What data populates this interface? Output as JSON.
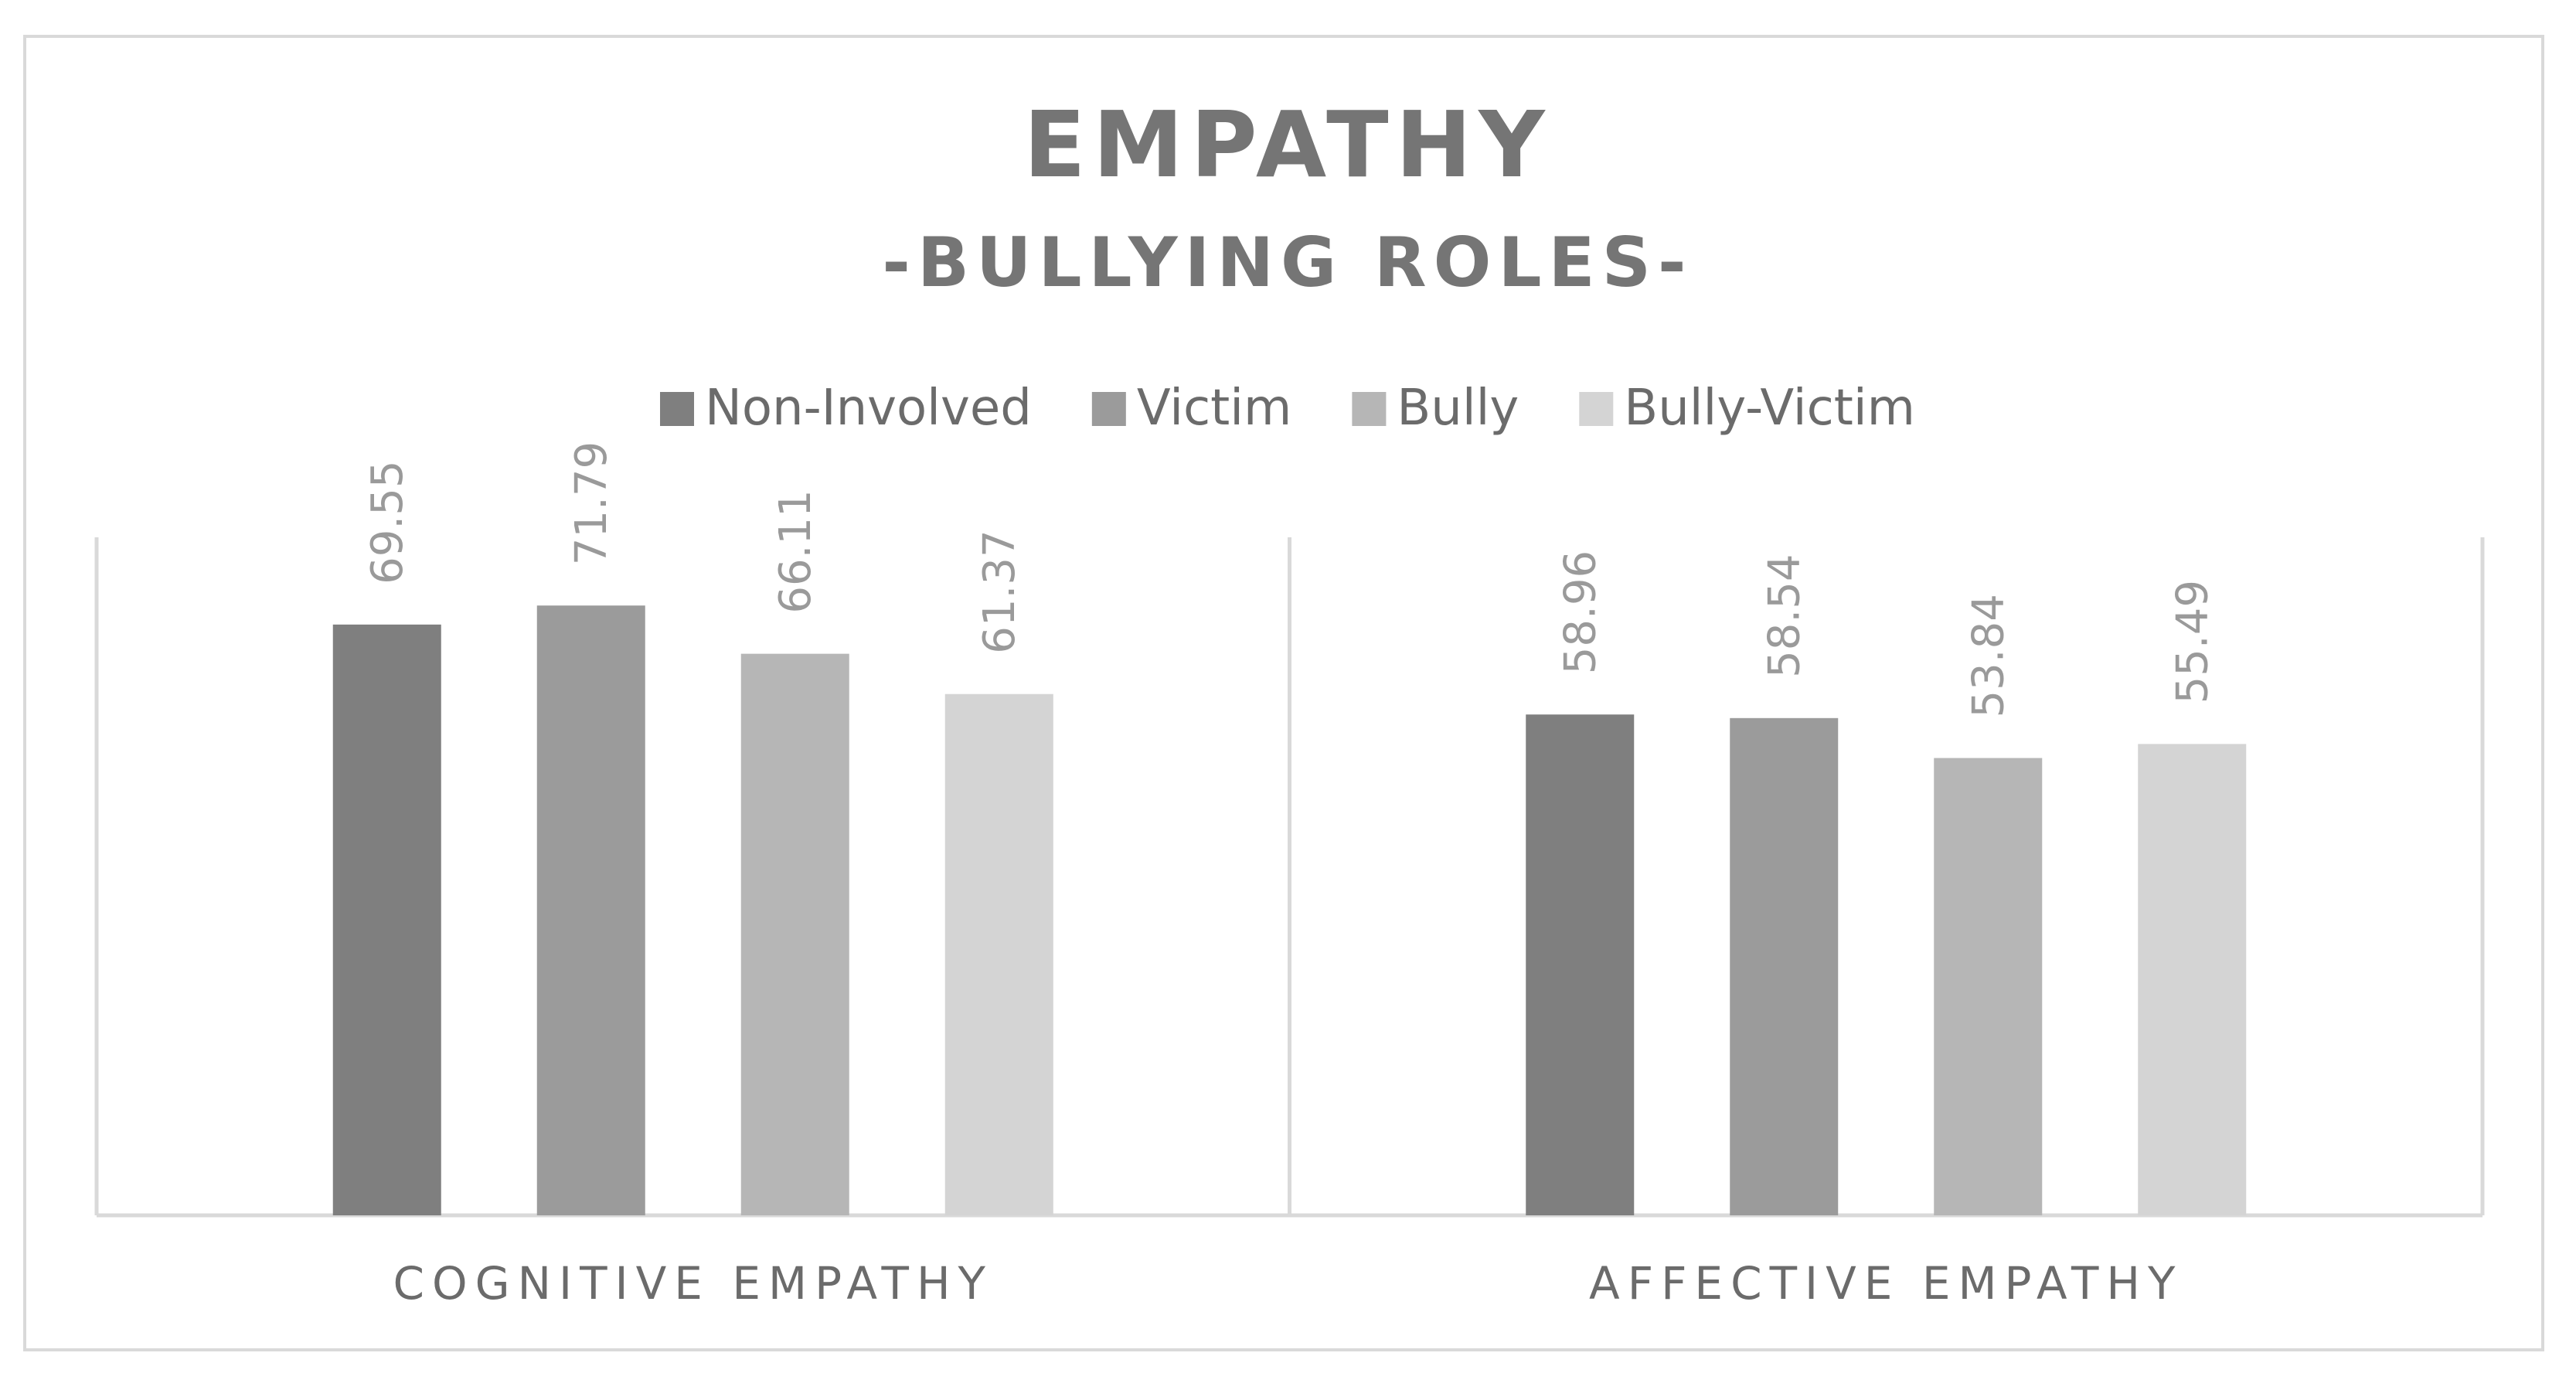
{
  "chart_data": {
    "type": "bar",
    "title": "EMPATHY",
    "subtitle": "-BULLYING ROLES-",
    "xlabel": "",
    "ylabel": "",
    "categories": [
      "COGNITIVE EMPATHY",
      "AFFECTIVE EMPATHY"
    ],
    "series": [
      {
        "name": "Non-Involved",
        "values": [
          69.55,
          58.96
        ],
        "labels": [
          "69.55",
          "58.96"
        ],
        "color": "#7f7f7f"
      },
      {
        "name": "Victim",
        "values": [
          71.79,
          58.54
        ],
        "labels": [
          "71.79",
          "58.54"
        ],
        "color": "#9b9b9b"
      },
      {
        "name": "Bully",
        "values": [
          66.11,
          53.84
        ],
        "labels": [
          "66.11",
          "53.84"
        ],
        "color": "#b6b6b6"
      },
      {
        "name": "Bully-Victim",
        "values": [
          61.37,
          55.49
        ],
        "labels": [
          "61.37",
          "55.49"
        ],
        "color": "#d4d4d4"
      }
    ],
    "ylim": [
      0,
      90
    ],
    "grid": false,
    "legend": "top-center",
    "axis_color": "#d9d9d9"
  }
}
